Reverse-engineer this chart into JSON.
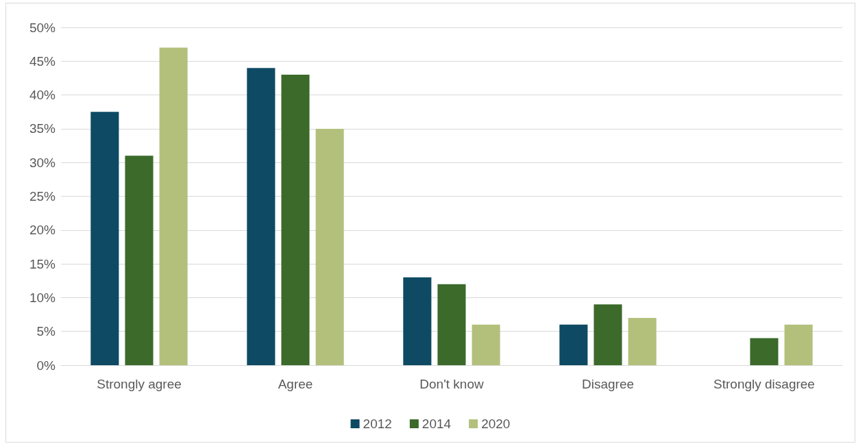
{
  "chart_data": {
    "type": "bar",
    "categories": [
      "Strongly agree",
      "Agree",
      "Don't know",
      "Disagree",
      "Strongly disagree"
    ],
    "series": [
      {
        "name": "2012",
        "color": "#0e4a63",
        "values": [
          37.5,
          44,
          13,
          6,
          null
        ]
      },
      {
        "name": "2014",
        "color": "#3b6a2b",
        "values": [
          31,
          43,
          12,
          9,
          4
        ]
      },
      {
        "name": "2020",
        "color": "#b2c07c",
        "values": [
          47,
          35,
          6,
          7,
          6
        ]
      }
    ],
    "ylim": [
      0,
      50
    ],
    "yticks": [
      {
        "value": 0,
        "label": "0%"
      },
      {
        "value": 5,
        "label": "5%"
      },
      {
        "value": 10,
        "label": "10%"
      },
      {
        "value": 15,
        "label": "15%"
      },
      {
        "value": 20,
        "label": "20%"
      },
      {
        "value": 25,
        "label": "25%"
      },
      {
        "value": 30,
        "label": "30%"
      },
      {
        "value": 35,
        "label": "35%"
      },
      {
        "value": 40,
        "label": "40%"
      },
      {
        "value": 45,
        "label": "45%"
      },
      {
        "value": 50,
        "label": "50%"
      }
    ],
    "grid": "y",
    "legend": "bottom"
  }
}
